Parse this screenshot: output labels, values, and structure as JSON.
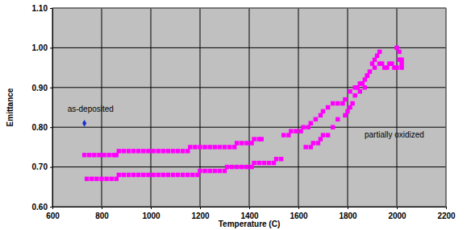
{
  "chart_data": {
    "type": "scatter",
    "xlabel": "Temperature (C)",
    "ylabel": "Emittance",
    "xlim": [
      600,
      2200
    ],
    "xticks": [
      600,
      800,
      1000,
      1200,
      1400,
      1600,
      1800,
      2000,
      2200
    ],
    "ylim": [
      0.6,
      1.1
    ],
    "yticks": [
      {
        "value": 0.6,
        "label": "0.60"
      },
      {
        "value": 0.7,
        "label": "0.70"
      },
      {
        "value": 0.8,
        "label": "0.80"
      },
      {
        "value": 0.9,
        "label": "0.90"
      },
      {
        "value": 1.0,
        "label": "1.00"
      },
      {
        "value": 1.1,
        "label": "1.10"
      }
    ],
    "grid": true,
    "annotations": [
      {
        "text": "as-deposited",
        "x": 755,
        "y": 0.845
      },
      {
        "text": "partially oxidized",
        "x": 1990,
        "y": 0.78
      }
    ],
    "series": [
      {
        "color": "#1a2fd0",
        "marker": "diamond",
        "x": [
          730
        ],
        "values": [
          0.81
        ]
      },
      {
        "color": "#ff00ff",
        "marker": "square",
        "x": [
          730,
          750,
          770,
          790,
          810,
          830,
          850,
          860,
          870,
          890,
          910,
          930,
          950,
          970,
          990,
          1010,
          1030,
          1050,
          1070,
          1090,
          1110,
          1130,
          1150,
          1160,
          1180,
          1200,
          1220,
          1240,
          1260,
          1280,
          1300,
          1320,
          1340,
          1350,
          1370,
          1390,
          1410,
          1420,
          1440,
          1450,
          740,
          760,
          780,
          800,
          820,
          840,
          860,
          870,
          890,
          910,
          930,
          950,
          970,
          990,
          1010,
          1030,
          1050,
          1070,
          1090,
          1110,
          1130,
          1150,
          1170,
          1190,
          1200,
          1220,
          1240,
          1260,
          1280,
          1300,
          1310,
          1330,
          1350,
          1370,
          1390,
          1410,
          1420,
          1440,
          1460,
          1480,
          1500,
          1510,
          1530,
          1540,
          1560,
          1570,
          1590,
          1610,
          1620,
          1640,
          1650,
          1670,
          1690,
          1700,
          1720,
          1740,
          1760,
          1780,
          1790,
          1810,
          1830,
          1850,
          1860,
          1870,
          1880,
          1900,
          1910,
          1920,
          1930,
          1630,
          1650,
          1660,
          1680,
          1690,
          1700,
          1720,
          1740,
          1760,
          1790,
          1800,
          1810,
          1820,
          1830,
          1840,
          1850,
          1860,
          1870,
          1880,
          1890,
          1910,
          1930,
          1940,
          1950,
          1960,
          1970,
          1980,
          1990,
          2000,
          2000,
          2010,
          2010,
          2020,
          2020,
          2020
        ],
        "values": [
          0.73,
          0.73,
          0.73,
          0.73,
          0.73,
          0.73,
          0.73,
          0.73,
          0.74,
          0.74,
          0.74,
          0.74,
          0.74,
          0.74,
          0.74,
          0.74,
          0.74,
          0.74,
          0.74,
          0.74,
          0.74,
          0.74,
          0.74,
          0.75,
          0.75,
          0.75,
          0.75,
          0.75,
          0.75,
          0.75,
          0.75,
          0.75,
          0.75,
          0.76,
          0.76,
          0.76,
          0.76,
          0.77,
          0.77,
          0.77,
          0.67,
          0.67,
          0.67,
          0.67,
          0.67,
          0.67,
          0.67,
          0.68,
          0.68,
          0.68,
          0.68,
          0.68,
          0.68,
          0.68,
          0.68,
          0.68,
          0.68,
          0.68,
          0.68,
          0.68,
          0.68,
          0.68,
          0.68,
          0.68,
          0.69,
          0.69,
          0.69,
          0.69,
          0.69,
          0.69,
          0.7,
          0.7,
          0.7,
          0.7,
          0.7,
          0.7,
          0.71,
          0.71,
          0.71,
          0.71,
          0.71,
          0.72,
          0.72,
          0.78,
          0.78,
          0.79,
          0.79,
          0.79,
          0.8,
          0.8,
          0.81,
          0.82,
          0.83,
          0.84,
          0.85,
          0.86,
          0.86,
          0.86,
          0.87,
          0.89,
          0.9,
          0.91,
          0.91,
          0.92,
          0.93,
          0.96,
          0.97,
          0.98,
          0.99,
          0.75,
          0.75,
          0.76,
          0.76,
          0.77,
          0.78,
          0.78,
          0.8,
          0.82,
          0.83,
          0.84,
          0.85,
          0.86,
          0.88,
          0.9,
          0.89,
          0.91,
          0.9,
          0.93,
          0.94,
          0.95,
          0.96,
          0.96,
          0.95,
          0.95,
          0.96,
          0.96,
          0.95,
          0.95,
          1.0,
          0.99,
          0.97,
          0.96,
          0.97,
          0.95
        ]
      }
    ]
  }
}
